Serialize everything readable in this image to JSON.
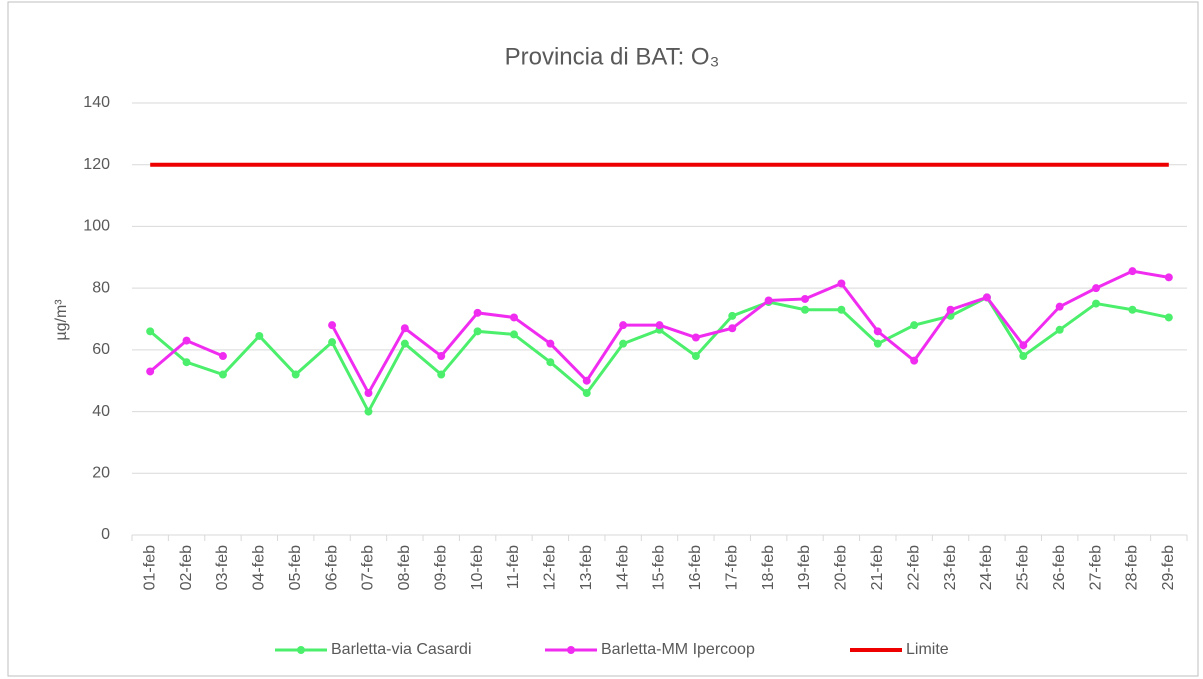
{
  "chart_data": {
    "type": "line",
    "title": "Provincia di BAT: O₃",
    "y_label": "µg/m³",
    "categories": [
      "01-feb",
      "02-feb",
      "03-feb",
      "04-feb",
      "05-feb",
      "06-feb",
      "07-feb",
      "08-feb",
      "09-feb",
      "10-feb",
      "11-feb",
      "12-feb",
      "13-feb",
      "14-feb",
      "15-feb",
      "16-feb",
      "17-feb",
      "18-feb",
      "19-feb",
      "20-feb",
      "21-feb",
      "22-feb",
      "23-feb",
      "24-feb",
      "25-feb",
      "26-feb",
      "27-feb",
      "28-feb",
      "29-feb"
    ],
    "series": [
      {
        "name": "Barletta-via Casardi",
        "color": "#4cef6c",
        "marker": true,
        "values": [
          66,
          56,
          52,
          64.5,
          52,
          62.5,
          40,
          62,
          52,
          66,
          65,
          56,
          46,
          62,
          66.5,
          58,
          71,
          75.5,
          73,
          73,
          62,
          68,
          71,
          77,
          58,
          66.5,
          75,
          73,
          70.5
        ]
      },
      {
        "name": "Barletta-MM Ipercoop",
        "color": "#f02cf0",
        "marker": true,
        "values": [
          53,
          63,
          58,
          null,
          null,
          68,
          46,
          67,
          58,
          72,
          70.5,
          62,
          50,
          68,
          68,
          64,
          67,
          76,
          76.5,
          81.5,
          66,
          56.5,
          73,
          77,
          61.5,
          74,
          80,
          85.5,
          83.5
        ]
      },
      {
        "name": "Limite",
        "color": "#ee0000",
        "marker": false,
        "values": [
          120,
          120,
          120,
          120,
          120,
          120,
          120,
          120,
          120,
          120,
          120,
          120,
          120,
          120,
          120,
          120,
          120,
          120,
          120,
          120,
          120,
          120,
          120,
          120,
          120,
          120,
          120,
          120,
          120
        ]
      }
    ],
    "ylim": [
      0,
      140
    ],
    "yticks": [
      0,
      20,
      40,
      60,
      80,
      100,
      120,
      140
    ],
    "grid": true,
    "legend": "bottom"
  }
}
